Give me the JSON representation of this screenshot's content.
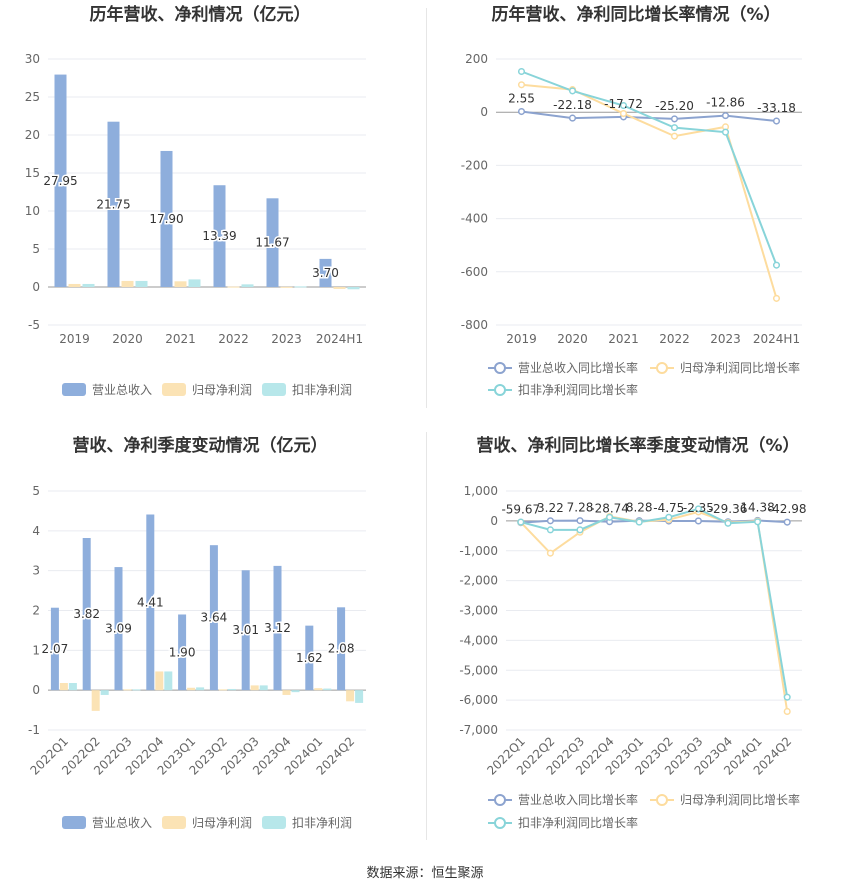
{
  "colors": {
    "revenue": "#8eaedc",
    "net_profit": "#fbe3b5",
    "deducted_profit": "#b7e7ea",
    "revenue_line": "#8ca3cf",
    "net_line": "#fddc9e",
    "deducted_line": "#88d4d9",
    "grid": "#e9ebf0",
    "axis_text": "#666666",
    "title": "#333333"
  },
  "source_text": "数据来源：恒生聚源",
  "chart_data": [
    {
      "type": "bar",
      "title": "历年营收、净利情况（亿元）",
      "categories": [
        "2019",
        "2020",
        "2021",
        "2022",
        "2023",
        "2024H1"
      ],
      "ylim": [
        -5,
        30
      ],
      "yticks": [
        -5,
        0,
        5,
        10,
        15,
        20,
        25,
        30
      ],
      "series": [
        {
          "name": "营业总收入",
          "values": [
            27.95,
            21.75,
            17.9,
            13.39,
            11.67,
            3.7
          ],
          "labels": [
            "27.95",
            "21.75",
            "17.90",
            "13.39",
            "11.67",
            "3.70"
          ]
        },
        {
          "name": "归母净利润",
          "values": [
            0.4,
            0.8,
            0.75,
            0.05,
            0.02,
            -0.25
          ]
        },
        {
          "name": "扣非净利润",
          "values": [
            0.4,
            0.8,
            1.0,
            0.35,
            0.08,
            -0.3
          ]
        }
      ],
      "legend": "bottom"
    },
    {
      "type": "line",
      "title": "历年营收、净利同比增长率情况（%）",
      "categories": [
        "2019",
        "2020",
        "2021",
        "2022",
        "2023",
        "2024H1"
      ],
      "ylim": [
        -800,
        200
      ],
      "yticks": [
        -800,
        -600,
        -400,
        -200,
        0,
        200
      ],
      "series": [
        {
          "name": "营业总收入同比增长率",
          "values": [
            2.55,
            -22.18,
            -17.72,
            -25.2,
            -12.86,
            -33.18
          ],
          "labels": [
            "2.55",
            "-22.18",
            "-17.72",
            "-25.20",
            "-12.86",
            "-33.18"
          ]
        },
        {
          "name": "归母净利润同比增长率",
          "values": [
            103,
            85,
            -5,
            -90,
            -55,
            -700
          ]
        },
        {
          "name": "扣非净利润同比增长率",
          "values": [
            153,
            80,
            25,
            -58,
            -75,
            -575
          ]
        }
      ],
      "legend": "bottom"
    },
    {
      "type": "bar",
      "title": "营收、净利季度变动情况（亿元）",
      "categories": [
        "2022Q1",
        "2022Q2",
        "2022Q3",
        "2022Q4",
        "2023Q1",
        "2023Q2",
        "2023Q3",
        "2023Q4",
        "2024Q1",
        "2024Q2"
      ],
      "ylim": [
        -1,
        5
      ],
      "yticks": [
        -1,
        0,
        1,
        2,
        3,
        4,
        5
      ],
      "series": [
        {
          "name": "营业总收入",
          "values": [
            2.07,
            3.82,
            3.09,
            4.41,
            1.9,
            3.64,
            3.01,
            3.12,
            1.62,
            2.08
          ],
          "labels": [
            "2.07",
            "3.82",
            "3.09",
            "4.41",
            "1.90",
            "3.64",
            "3.01",
            "3.12",
            "1.62",
            "2.08"
          ]
        },
        {
          "name": "归母净利润",
          "values": [
            0.18,
            -0.52,
            0.02,
            0.47,
            0.06,
            0.02,
            0.12,
            -0.12,
            0.05,
            -0.28
          ]
        },
        {
          "name": "扣非净利润",
          "values": [
            0.18,
            -0.12,
            0.02,
            0.47,
            0.07,
            0.03,
            0.12,
            -0.05,
            0.04,
            -0.32
          ]
        }
      ],
      "legend": "bottom"
    },
    {
      "type": "line",
      "title": "营收、净利同比增长率季度变动情况（%）",
      "categories": [
        "2022Q1",
        "2022Q2",
        "2022Q3",
        "2022Q4",
        "2023Q1",
        "2023Q2",
        "2023Q3",
        "2023Q4",
        "2024Q1",
        "2024Q2"
      ],
      "ylim": [
        -7000,
        1000
      ],
      "yticks": [
        -7000,
        -6000,
        -5000,
        -4000,
        -3000,
        -2000,
        -1000,
        0,
        1000
      ],
      "series": [
        {
          "name": "营业总收入同比增长率",
          "values": [
            -59.67,
            3.22,
            7.28,
            -28.74,
            8.28,
            -4.75,
            -2.35,
            -29.36,
            14.38,
            -42.98
          ],
          "labels": [
            "-59.67",
            "3.22",
            "7.28",
            "-28.74",
            "8.28",
            "-4.75",
            "-2.35",
            "-29.36",
            "14.38",
            "-42.98"
          ]
        },
        {
          "name": "归母净利润同比增长率",
          "values": [
            -50,
            -1080,
            -380,
            150,
            -30,
            40,
            300,
            -60,
            -10,
            -6380
          ]
        },
        {
          "name": "扣非净利润同比增长率",
          "values": [
            -40,
            -300,
            -300,
            120,
            -40,
            120,
            400,
            -80,
            -30,
            -5900
          ]
        }
      ],
      "legend": "bottom"
    }
  ]
}
